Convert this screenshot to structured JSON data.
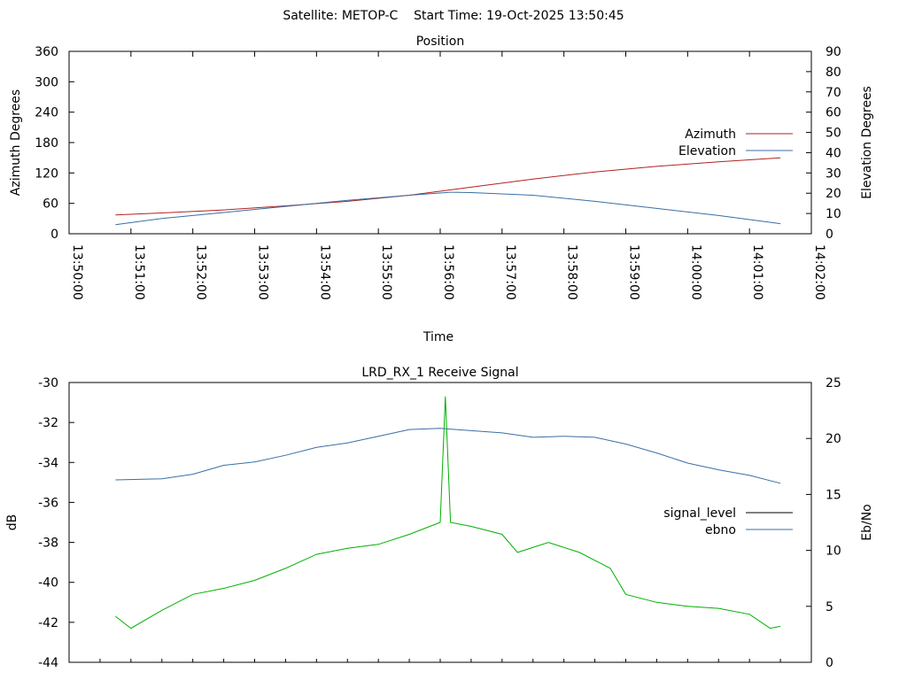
{
  "header": {
    "title": "Satellite: METOP-C    Start Time: 19-Oct-2025 13:50:45"
  },
  "chart_data": [
    {
      "type": "line",
      "title": "Position",
      "xlabel": "Time",
      "ylabel_left": "Azimuth Degrees",
      "ylabel_right": "Elevation Degrees",
      "xlim": [
        "13:50:00",
        "14:02:00"
      ],
      "ylim_left": [
        0,
        360
      ],
      "ylim_right": [
        0,
        90
      ],
      "x_ticks": [
        "13:50:00",
        "13:51:00",
        "13:52:00",
        "13:53:00",
        "13:54:00",
        "13:55:00",
        "13:56:00",
        "13:57:00",
        "13:58:00",
        "13:59:00",
        "14:00:00",
        "14:01:00",
        "14:02:00"
      ],
      "y_ticks_left": [
        "0",
        "60",
        "120",
        "180",
        "240",
        "300",
        "360"
      ],
      "y_ticks_right": [
        "0",
        "10",
        "20",
        "30",
        "40",
        "50",
        "60",
        "70",
        "80",
        "90"
      ],
      "grid": false,
      "legend_position": "right",
      "series": [
        {
          "name": "Azimuth",
          "axis": "left",
          "color": "#b22222",
          "x": [
            "13:50:45",
            "13:51:30",
            "13:52:30",
            "13:53:30",
            "13:54:30",
            "13:55:30",
            "13:56:30",
            "13:57:30",
            "13:58:30",
            "13:59:30",
            "14:00:30",
            "14:01:30"
          ],
          "y": [
            37,
            41,
            47,
            55,
            64,
            76,
            92,
            108,
            122,
            133,
            142,
            150
          ]
        },
        {
          "name": "Elevation",
          "axis": "right",
          "color": "#3a6ea5",
          "x": [
            "13:50:45",
            "13:51:30",
            "13:52:30",
            "13:53:30",
            "13:54:30",
            "13:55:30",
            "13:56:10",
            "13:56:30",
            "13:57:30",
            "13:58:30",
            "13:59:30",
            "14:00:30",
            "14:01:30"
          ],
          "y": [
            4.5,
            7.5,
            10.5,
            13.5,
            16.5,
            19,
            20.5,
            20.3,
            19,
            16,
            12.5,
            9,
            5
          ]
        }
      ]
    },
    {
      "type": "line",
      "title": "LRD_RX_1 Receive Signal",
      "xlabel": "",
      "ylabel_left": "dB",
      "ylabel_right": "Eb/No",
      "xlim": [
        "13:50:00",
        "14:02:00"
      ],
      "ylim_left": [
        -44,
        -30
      ],
      "ylim_right": [
        0,
        25
      ],
      "y_ticks_left": [
        "-30",
        "-32",
        "-34",
        "-36",
        "-38",
        "-40",
        "-42",
        "-44"
      ],
      "y_ticks_right": [
        "0",
        "5",
        "10",
        "15",
        "20",
        "25"
      ],
      "grid": false,
      "legend_position": "right",
      "series": [
        {
          "name": "signal_level",
          "axis": "left",
          "color": "#00b000",
          "x": [
            "13:50:45",
            "13:51:00",
            "13:51:30",
            "13:52:00",
            "13:52:30",
            "13:53:00",
            "13:53:30",
            "13:54:00",
            "13:54:30",
            "13:55:00",
            "13:55:30",
            "13:56:00",
            "13:56:05",
            "13:56:10",
            "13:56:30",
            "13:57:00",
            "13:57:15",
            "13:57:45",
            "13:58:15",
            "13:58:45",
            "13:59:00",
            "13:59:30",
            "14:00:00",
            "14:00:30",
            "14:01:00",
            "14:01:20",
            "14:01:30"
          ],
          "y": [
            -41.7,
            -42.3,
            -41.4,
            -40.6,
            -40.3,
            -39.9,
            -39.3,
            -38.6,
            -38.3,
            -38.1,
            -37.6,
            -37.0,
            -30.7,
            -37.0,
            -37.2,
            -37.6,
            -38.5,
            -38.0,
            -38.5,
            -39.3,
            -40.6,
            -41.0,
            -41.2,
            -41.3,
            -41.6,
            -42.3,
            -42.2
          ]
        },
        {
          "name": "ebno",
          "axis": "right",
          "color": "#3a6ea5",
          "x": [
            "13:50:45",
            "13:51:30",
            "13:52:00",
            "13:52:30",
            "13:53:00",
            "13:53:30",
            "13:54:00",
            "13:54:30",
            "13:55:00",
            "13:55:30",
            "13:56:00",
            "13:56:30",
            "13:57:00",
            "13:57:30",
            "13:58:00",
            "13:58:30",
            "13:59:00",
            "13:59:30",
            "14:00:00",
            "14:00:30",
            "14:01:00",
            "14:01:30"
          ],
          "y": [
            16.3,
            16.4,
            16.8,
            17.6,
            17.9,
            18.5,
            19.2,
            19.6,
            20.2,
            20.8,
            20.9,
            20.7,
            20.5,
            20.1,
            20.2,
            20.1,
            19.5,
            18.7,
            17.8,
            17.2,
            16.7,
            16.0
          ]
        }
      ]
    }
  ]
}
